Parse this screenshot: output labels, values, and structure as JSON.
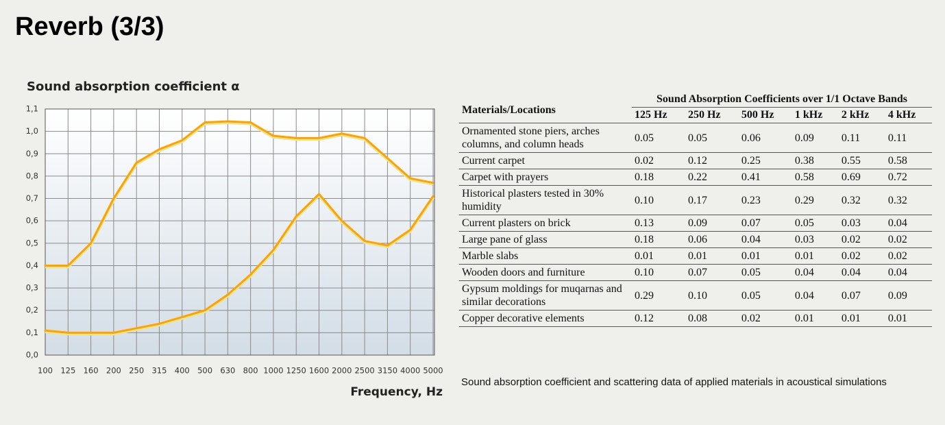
{
  "title": "Reverb (3/3)",
  "chart_data": {
    "type": "line",
    "ylabel": "Sound absorption coefficient α",
    "xlabel": "Frequency, Hz",
    "categories": [
      "100",
      "125",
      "160",
      "200",
      "250",
      "315",
      "400",
      "500",
      "630",
      "800",
      "1000",
      "1250",
      "1600",
      "2000",
      "2500",
      "3150",
      "4000",
      "5000"
    ],
    "series": [
      {
        "color": "#f3a21f",
        "values": [
          0.4,
          0.4,
          0.5,
          0.7,
          0.86,
          0.92,
          0.96,
          1.04,
          1.045,
          1.04,
          0.98,
          0.97,
          0.97,
          0.99,
          0.97,
          0.88,
          0.79,
          0.77
        ]
      },
      {
        "color": "#f3a21f",
        "values": [
          0.11,
          0.1,
          0.1,
          0.1,
          0.12,
          0.14,
          0.17,
          0.2,
          0.27,
          0.36,
          0.47,
          0.62,
          0.72,
          0.6,
          0.51,
          0.49,
          0.56,
          0.71
        ]
      }
    ],
    "ylim": [
      0,
      1.1
    ],
    "yticks": [
      {
        "value": 0,
        "label": "0,0"
      },
      {
        "value": 0.1,
        "label": "0,1"
      },
      {
        "value": 0.2,
        "label": "0,2"
      },
      {
        "value": 0.3,
        "label": "0,3"
      },
      {
        "value": 0.4,
        "label": "0,4"
      },
      {
        "value": 0.5,
        "label": "0,5"
      },
      {
        "value": 0.6,
        "label": "0,6"
      },
      {
        "value": 0.7,
        "label": "0,7"
      },
      {
        "value": 0.8,
        "label": "0,8"
      },
      {
        "value": 0.9,
        "label": "0,9"
      },
      {
        "value": 1.0,
        "label": "1,0"
      },
      {
        "value": 1.1,
        "label": "1,1"
      }
    ],
    "grid": true
  },
  "table": {
    "header": {
      "material": "Materials/Locations",
      "group": "Sound Absorption Coefficients over 1/1 Octave Bands"
    },
    "columns": [
      "125 Hz",
      "250 Hz",
      "500 Hz",
      "1 kHz",
      "2 kHz",
      "4 kHz"
    ],
    "rows": [
      {
        "material": "Ornamented stone piers, arches columns, and column heads",
        "values": [
          "0.05",
          "0.05",
          "0.06",
          "0.09",
          "0.11",
          "0.11"
        ]
      },
      {
        "material": "Current carpet",
        "values": [
          "0.02",
          "0.12",
          "0.25",
          "0.38",
          "0.55",
          "0.58"
        ]
      },
      {
        "material": "Carpet with prayers",
        "values": [
          "0.18",
          "0.22",
          "0.41",
          "0.58",
          "0.69",
          "0.72"
        ]
      },
      {
        "material": "Historical plasters tested in 30% humidity",
        "values": [
          "0.10",
          "0.17",
          "0.23",
          "0.29",
          "0.32",
          "0.32"
        ]
      },
      {
        "material": "Current plasters on brick",
        "values": [
          "0.13",
          "0.09",
          "0.07",
          "0.05",
          "0.03",
          "0.04"
        ]
      },
      {
        "material": "Large pane of glass",
        "values": [
          "0.18",
          "0.06",
          "0.04",
          "0.03",
          "0.02",
          "0.02"
        ]
      },
      {
        "material": "Marble slabs",
        "values": [
          "0.01",
          "0.01",
          "0.01",
          "0.01",
          "0.02",
          "0.02"
        ]
      },
      {
        "material": "Wooden doors and furniture",
        "values": [
          "0.10",
          "0.07",
          "0.05",
          "0.04",
          "0.04",
          "0.04"
        ]
      },
      {
        "material": "Gypsum moldings for muqarnas and similar decorations",
        "values": [
          "0.29",
          "0.10",
          "0.05",
          "0.04",
          "0.07",
          "0.09"
        ]
      },
      {
        "material": "Copper decorative elements",
        "values": [
          "0.12",
          "0.08",
          "0.02",
          "0.01",
          "0.01",
          "0.01"
        ]
      }
    ],
    "caption": "Sound absorption coefficient and scattering data of applied materials in acoustical simulations"
  }
}
